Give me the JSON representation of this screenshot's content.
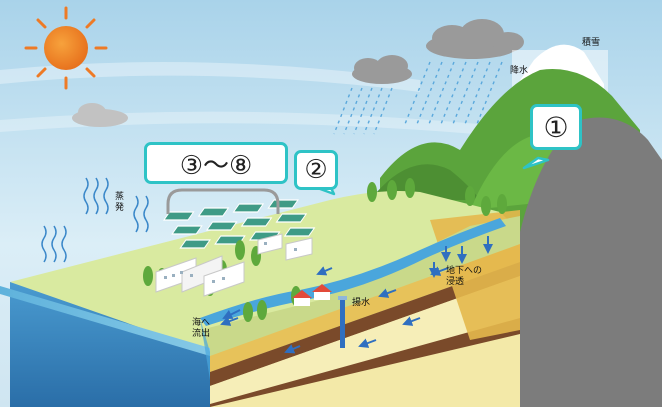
{
  "labels": {
    "snow": "積雪",
    "rain": "降水",
    "evaporation": "蒸\n発",
    "infiltration": "地下への\n浸透",
    "pumping": "揚水",
    "outflow": "海へ\n流出"
  },
  "callouts": {
    "mountain": "①",
    "farmland": "②",
    "city": "③〜⑧"
  },
  "colors": {
    "sky": "#cfe6f2",
    "sea": "#3d8cc4",
    "plain": "#d9eaa0",
    "mountain_green": "#5ba43c",
    "rock": "#808080",
    "callout_border": "#2ec3c6",
    "arrow": "#2f6fc0"
  },
  "icons": [
    "sun-icon",
    "cloud-icon",
    "rain-icon",
    "evaporation-icon",
    "pump-well-icon",
    "flow-arrow-icon"
  ]
}
